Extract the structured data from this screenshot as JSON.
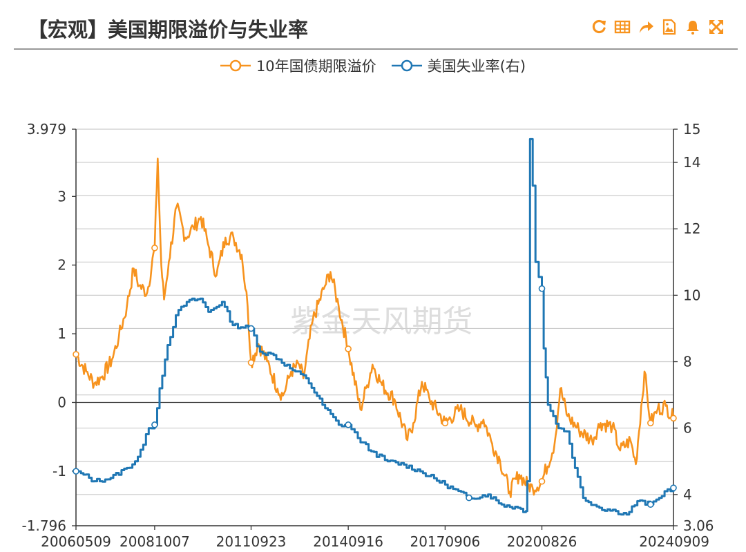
{
  "page": {
    "title": "【宏观】美国期限溢价与失业率",
    "watermark": "紫金天风期货",
    "toolbar_icons": [
      "refresh-icon",
      "data-table-icon",
      "share-icon",
      "save-image-icon",
      "alert-bell-icon",
      "fullscreen-icon"
    ],
    "accent_color": "#f7931e"
  },
  "chart_data": {
    "type": "line",
    "x_tick_labels": [
      "20060509",
      "20081007",
      "20110923",
      "20140916",
      "20170906",
      "20200826",
      "20240909"
    ],
    "x_range": [
      "2006-05-09",
      "2024-09-09"
    ],
    "left_axis": {
      "ticks": [
        "3.979",
        "3",
        "2",
        "1",
        "0",
        "-1",
        "-1.796"
      ],
      "range": [
        -1.796,
        3.979
      ]
    },
    "right_axis": {
      "ticks": [
        "15",
        "14",
        "12",
        "10",
        "8",
        "6",
        "4",
        "3.06"
      ],
      "range": [
        3.06,
        15
      ]
    },
    "grid": true,
    "legend_position": "top-center",
    "series": [
      {
        "name": "10年国债期限溢价",
        "axis": "left",
        "color": "#f7931e",
        "points": [
          [
            "2006-05-09",
            0.7
          ],
          [
            "2006-09-01",
            0.45
          ],
          [
            "2006-12-01",
            0.28
          ],
          [
            "2007-03-01",
            0.38
          ],
          [
            "2007-06-15",
            0.62
          ],
          [
            "2007-09-01",
            0.95
          ],
          [
            "2007-12-01",
            1.4
          ],
          [
            "2008-02-15",
            1.95
          ],
          [
            "2008-04-15",
            1.7
          ],
          [
            "2008-07-15",
            1.6
          ],
          [
            "2008-10-07",
            2.25
          ],
          [
            "2008-11-10",
            3.55
          ],
          [
            "2008-12-20",
            2.0
          ],
          [
            "2009-01-20",
            1.5
          ],
          [
            "2009-03-15",
            2.05
          ],
          [
            "2009-06-10",
            2.85
          ],
          [
            "2009-09-15",
            2.4
          ],
          [
            "2009-12-15",
            2.55
          ],
          [
            "2010-03-10",
            2.7
          ],
          [
            "2010-06-10",
            2.25
          ],
          [
            "2010-09-01",
            1.85
          ],
          [
            "2010-12-10",
            2.4
          ],
          [
            "2011-03-10",
            2.4
          ],
          [
            "2011-06-10",
            2.15
          ],
          [
            "2011-08-15",
            1.4
          ],
          [
            "2011-09-23",
            0.58
          ],
          [
            "2011-12-15",
            0.85
          ],
          [
            "2012-03-20",
            0.6
          ],
          [
            "2012-07-15",
            0.2
          ],
          [
            "2012-09-15",
            0.1
          ],
          [
            "2012-12-15",
            0.45
          ],
          [
            "2013-03-15",
            0.55
          ],
          [
            "2013-05-01",
            0.35
          ],
          [
            "2013-08-15",
            1.2
          ],
          [
            "2013-12-15",
            1.65
          ],
          [
            "2014-03-01",
            1.9
          ],
          [
            "2014-06-01",
            1.4
          ],
          [
            "2014-09-16",
            0.78
          ],
          [
            "2015-01-30",
            -0.1
          ],
          [
            "2015-04-15",
            0.25
          ],
          [
            "2015-06-15",
            0.55
          ],
          [
            "2015-10-01",
            0.25
          ],
          [
            "2016-02-15",
            0.05
          ],
          [
            "2016-07-10",
            -0.55
          ],
          [
            "2016-09-15",
            -0.3
          ],
          [
            "2016-12-20",
            0.3
          ],
          [
            "2017-03-15",
            0.05
          ],
          [
            "2017-09-06",
            -0.3
          ],
          [
            "2018-02-20",
            -0.1
          ],
          [
            "2018-08-15",
            -0.35
          ],
          [
            "2018-11-10",
            -0.25
          ],
          [
            "2019-02-15",
            -0.6
          ],
          [
            "2019-05-15",
            -0.85
          ],
          [
            "2019-08-31",
            -1.3
          ],
          [
            "2019-12-15",
            -1.05
          ],
          [
            "2020-03-20",
            -1.2
          ],
          [
            "2020-05-15",
            -1.25
          ],
          [
            "2020-08-26",
            -1.15
          ],
          [
            "2021-01-15",
            -0.6
          ],
          [
            "2021-03-20",
            0.2
          ],
          [
            "2021-06-10",
            -0.2
          ],
          [
            "2021-10-15",
            -0.4
          ],
          [
            "2022-03-10",
            -0.55
          ],
          [
            "2022-06-15",
            -0.3
          ],
          [
            "2022-10-25",
            -0.35
          ],
          [
            "2023-01-20",
            -0.7
          ],
          [
            "2023-05-15",
            -0.55
          ],
          [
            "2023-07-15",
            -0.9
          ],
          [
            "2023-10-20",
            0.45
          ],
          [
            "2023-12-27",
            -0.3
          ],
          [
            "2024-03-15",
            -0.1
          ],
          [
            "2024-06-15",
            -0.05
          ],
          [
            "2024-09-09",
            -0.23
          ]
        ]
      },
      {
        "name": "美国失业率(右)",
        "axis": "right",
        "color": "#1f77b4",
        "points": [
          [
            "2006-05-09",
            4.7
          ],
          [
            "2006-08-01",
            4.6
          ],
          [
            "2006-12-01",
            4.4
          ],
          [
            "2007-06-01",
            4.5
          ],
          [
            "2007-12-01",
            4.8
          ],
          [
            "2008-03-01",
            5.0
          ],
          [
            "2008-06-01",
            5.5
          ],
          [
            "2008-08-01",
            6.0
          ],
          [
            "2008-10-07",
            6.1
          ],
          [
            "2008-12-01",
            7.2
          ],
          [
            "2009-03-01",
            8.5
          ],
          [
            "2009-06-01",
            9.4
          ],
          [
            "2009-10-01",
            9.8
          ],
          [
            "2010-03-01",
            9.9
          ],
          [
            "2010-06-01",
            9.5
          ],
          [
            "2010-11-01",
            9.8
          ],
          [
            "2011-03-01",
            9.1
          ],
          [
            "2011-09-23",
            9.0
          ],
          [
            "2012-01-01",
            8.3
          ],
          [
            "2012-06-01",
            8.2
          ],
          [
            "2012-12-01",
            7.8
          ],
          [
            "2013-06-01",
            7.5
          ],
          [
            "2013-12-01",
            6.7
          ],
          [
            "2014-06-01",
            6.1
          ],
          [
            "2014-09-16",
            6.1
          ],
          [
            "2015-01-01",
            5.7
          ],
          [
            "2015-06-01",
            5.3
          ],
          [
            "2015-12-01",
            5.0
          ],
          [
            "2016-06-01",
            4.9
          ],
          [
            "2016-12-01",
            4.7
          ],
          [
            "2017-09-06",
            4.3
          ],
          [
            "2018-06-01",
            3.9
          ],
          [
            "2019-01-01",
            4.0
          ],
          [
            "2019-06-01",
            3.7
          ],
          [
            "2019-12-01",
            3.6
          ],
          [
            "2020-02-29",
            3.5
          ],
          [
            "2020-03-15",
            4.4
          ],
          [
            "2020-04-15",
            14.7
          ],
          [
            "2020-05-15",
            13.3
          ],
          [
            "2020-06-15",
            11.0
          ],
          [
            "2020-08-26",
            10.2
          ],
          [
            "2020-09-15",
            8.4
          ],
          [
            "2020-11-01",
            6.7
          ],
          [
            "2021-03-01",
            6.0
          ],
          [
            "2021-06-01",
            5.9
          ],
          [
            "2021-09-01",
            4.8
          ],
          [
            "2021-12-01",
            3.9
          ],
          [
            "2022-06-01",
            3.6
          ],
          [
            "2022-12-01",
            3.5
          ],
          [
            "2023-04-01",
            3.4
          ],
          [
            "2023-08-01",
            3.8
          ],
          [
            "2023-12-27",
            3.7
          ],
          [
            "2024-04-01",
            3.9
          ],
          [
            "2024-06-01",
            4.1
          ],
          [
            "2024-09-09",
            4.2
          ]
        ]
      }
    ]
  }
}
